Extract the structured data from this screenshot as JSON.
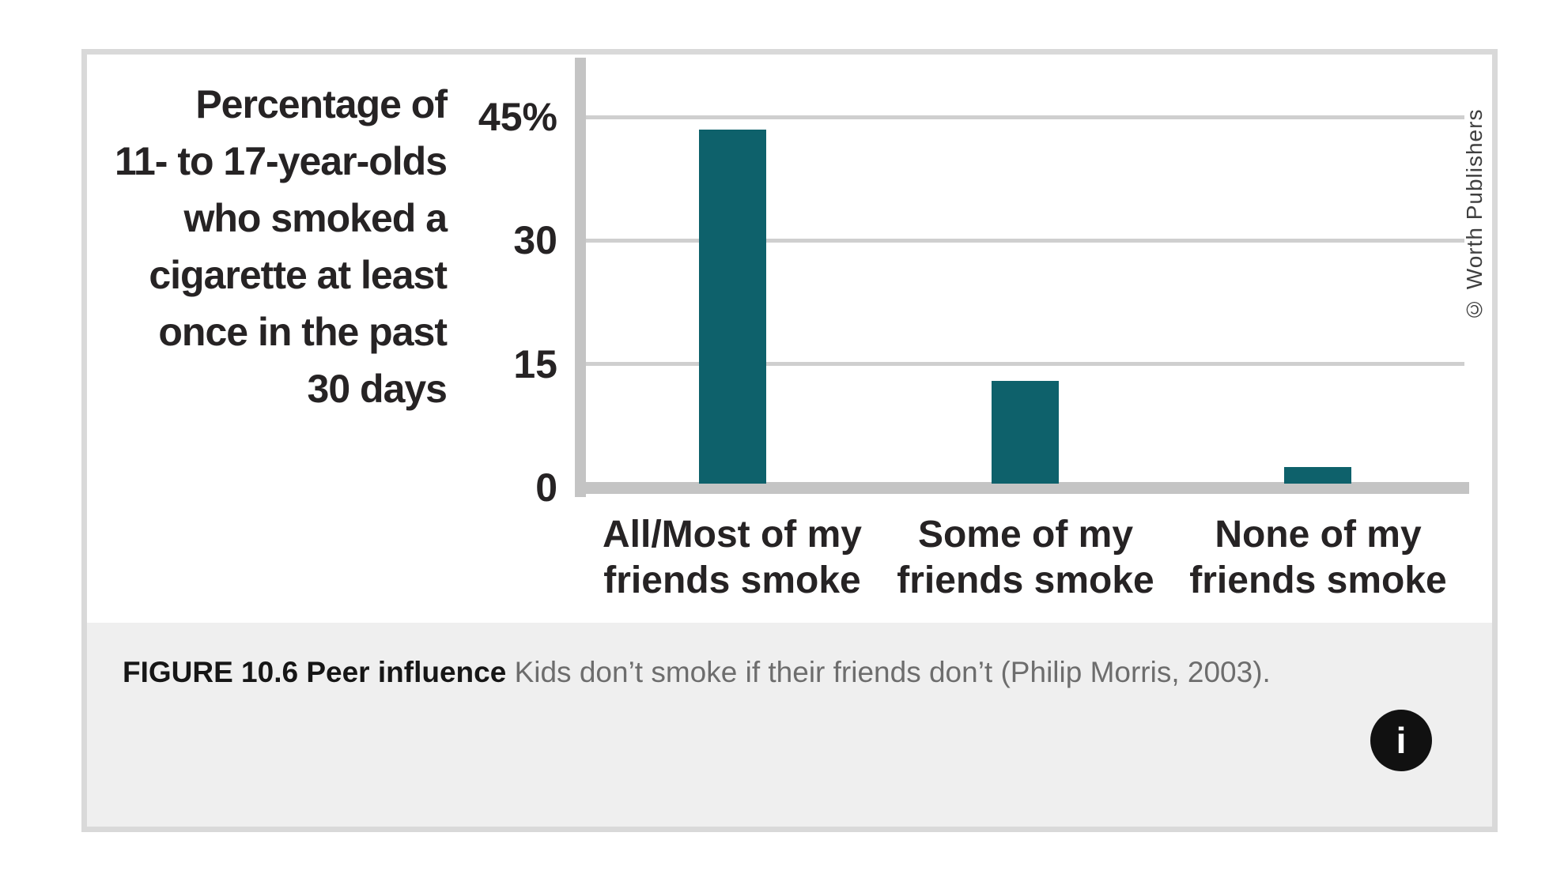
{
  "figure": {
    "caption": {
      "label": "FIGURE 10.6 Peer influence",
      "text": "Kids don’t smoke if their friends don’t (Philip Morris, 2003)."
    },
    "credit": "© Worth Publishers",
    "info_button_glyph": "i"
  },
  "chart_data": {
    "type": "bar",
    "title": "",
    "y_axis_title_lines": [
      "Percentage of",
      "11- to 17-year-olds",
      "who smoked a",
      "cigarette at least",
      "once in the past",
      "30 days"
    ],
    "categories": [
      [
        "All/Most of my",
        "friends smoke"
      ],
      [
        "Some of my",
        "friends smoke"
      ],
      [
        "None of my",
        "friends smoke"
      ]
    ],
    "values": [
      43,
      12.5,
      2
    ],
    "yticks": [
      0,
      15,
      30,
      45
    ],
    "ytick_labels": [
      "0",
      "15",
      "30",
      "45%"
    ],
    "ylim": [
      0,
      52
    ],
    "grid": true,
    "legend": "none",
    "colors": {
      "bar": "#0e616b",
      "axis": "#c4c4c4",
      "gridline": "#cfcfcf",
      "text": "#262324"
    }
  }
}
